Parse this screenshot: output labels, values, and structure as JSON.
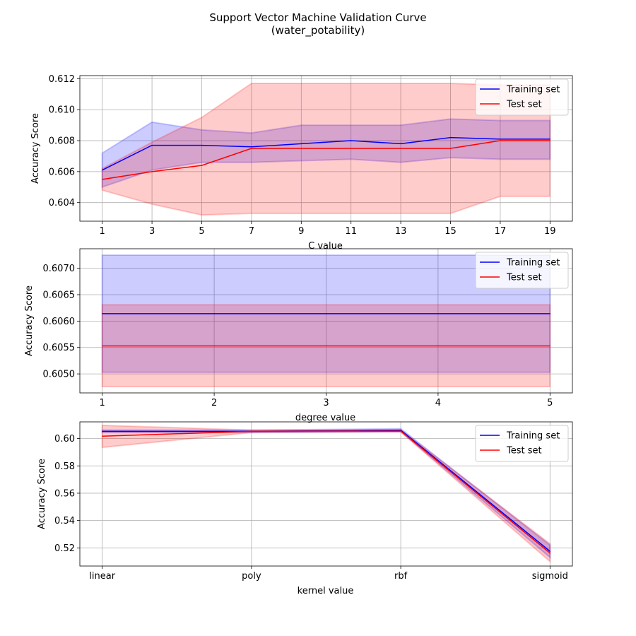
{
  "figure": {
    "title_line1": "Support Vector Machine Validation Curve",
    "title_line2": "(water_potability)"
  },
  "chart_data": [
    {
      "type": "line",
      "xlabel": "C value",
      "ylabel": "Accuracy Score",
      "x": [
        1,
        3,
        5,
        7,
        9,
        11,
        13,
        15,
        17,
        19
      ],
      "xticks": [
        1,
        3,
        5,
        7,
        9,
        11,
        13,
        15,
        17,
        19
      ],
      "yticks": [
        0.604,
        0.606,
        0.608,
        0.61,
        0.612
      ],
      "ytick_decimals": 3,
      "xlim": [
        0.1,
        19.9
      ],
      "ylim": [
        0.6028,
        0.6122
      ],
      "grid": true,
      "legend": "upper right",
      "series": [
        {
          "name": "Training set",
          "color": "#0000ff",
          "values": [
            0.6061,
            0.6077,
            0.6077,
            0.6076,
            0.6078,
            0.608,
            0.6078,
            0.6082,
            0.6081,
            0.6081
          ],
          "band_lower": [
            0.605,
            0.6061,
            0.6066,
            0.6066,
            0.6067,
            0.6068,
            0.6066,
            0.6069,
            0.6068,
            0.6068
          ],
          "band_upper": [
            0.6072,
            0.6092,
            0.6087,
            0.6085,
            0.609,
            0.609,
            0.609,
            0.6094,
            0.6093,
            0.6093
          ]
        },
        {
          "name": "Test set",
          "color": "#ff0000",
          "values": [
            0.6055,
            0.606,
            0.6064,
            0.6075,
            0.6075,
            0.6075,
            0.6075,
            0.6075,
            0.608,
            0.608
          ],
          "band_lower": [
            0.6048,
            0.6039,
            0.6032,
            0.6033,
            0.6033,
            0.6033,
            0.6033,
            0.6033,
            0.6044,
            0.6044
          ],
          "band_upper": [
            0.6062,
            0.6079,
            0.6095,
            0.6117,
            0.6117,
            0.6117,
            0.6117,
            0.6117,
            0.6116,
            0.6116
          ]
        }
      ]
    },
    {
      "type": "line",
      "xlabel": "degree value",
      "ylabel": "Accuracy Score",
      "x": [
        1,
        2,
        3,
        4,
        5
      ],
      "xticks": [
        1,
        2,
        3,
        4,
        5
      ],
      "yticks": [
        0.605,
        0.6055,
        0.606,
        0.6065,
        0.607
      ],
      "ytick_decimals": 4,
      "xlim": [
        0.8,
        5.2
      ],
      "ylim": [
        0.60464,
        0.60737
      ],
      "grid": true,
      "legend": "upper right",
      "series": [
        {
          "name": "Training set",
          "color": "#0000ff",
          "values": [
            0.60614,
            0.60614,
            0.60614,
            0.60614,
            0.60614
          ],
          "band_lower": [
            0.60503,
            0.60503,
            0.60503,
            0.60503,
            0.60503
          ],
          "band_upper": [
            0.60725,
            0.60725,
            0.60725,
            0.60725,
            0.60725
          ]
        },
        {
          "name": "Test set",
          "color": "#ff0000",
          "values": [
            0.60553,
            0.60553,
            0.60553,
            0.60553,
            0.60553
          ],
          "band_lower": [
            0.60476,
            0.60476,
            0.60476,
            0.60476,
            0.60476
          ],
          "band_upper": [
            0.60631,
            0.60631,
            0.60631,
            0.60631,
            0.60631
          ]
        }
      ]
    },
    {
      "type": "line",
      "xlabel": "kernel value",
      "ylabel": "Accuracy Score",
      "x": [
        "linear",
        "poly",
        "rbf",
        "sigmoid"
      ],
      "xticks": [
        "linear",
        "poly",
        "rbf",
        "sigmoid"
      ],
      "yticks": [
        0.52,
        0.54,
        0.56,
        0.58,
        0.6
      ],
      "ytick_decimals": 2,
      "xlim": [
        -0.15,
        3.15
      ],
      "ylim": [
        0.5067,
        0.6122
      ],
      "grid": true,
      "legend": "upper right",
      "series": [
        {
          "name": "Training set",
          "color": "#0000ff",
          "values": [
            0.6053,
            0.6053,
            0.6061,
            0.5175
          ],
          "band_lower": [
            0.6044,
            0.6044,
            0.605,
            0.513
          ],
          "band_upper": [
            0.6062,
            0.6062,
            0.6072,
            0.522
          ]
        },
        {
          "name": "Test set",
          "color": "#ff0000",
          "values": [
            0.6017,
            0.6053,
            0.6055,
            0.5162
          ],
          "band_lower": [
            0.5935,
            0.6044,
            0.6048,
            0.51
          ],
          "band_upper": [
            0.6097,
            0.6062,
            0.6062,
            0.523
          ]
        }
      ]
    }
  ]
}
